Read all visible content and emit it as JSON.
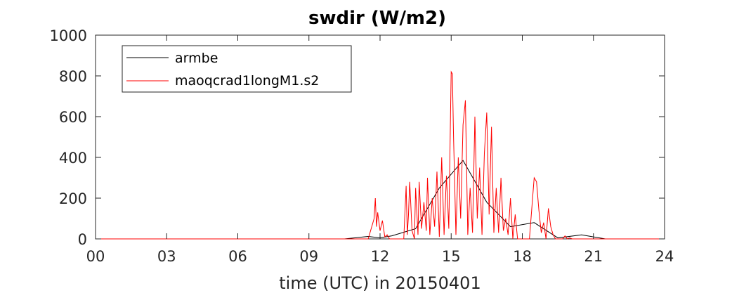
{
  "chart_data": {
    "type": "line",
    "title": "swdir  (W/m2)",
    "xlabel": "time (UTC) in 20150401",
    "ylabel": "",
    "xlim": [
      0,
      24
    ],
    "ylim": [
      0,
      1000
    ],
    "x_ticks": [
      0,
      3,
      6,
      9,
      12,
      15,
      18,
      21,
      24
    ],
    "x_tick_labels": [
      "00",
      "03",
      "06",
      "09",
      "12",
      "15",
      "18",
      "21",
      "24"
    ],
    "y_ticks": [
      0,
      200,
      400,
      600,
      800,
      1000
    ],
    "y_tick_labels": [
      "0",
      "200",
      "400",
      "600",
      "800",
      "1000"
    ],
    "legend_position": "top-left",
    "series": [
      {
        "name": "armbe",
        "color": "#000000",
        "x": [
          0,
          10.5,
          11.5,
          12.0,
          12.5,
          13.5,
          14.5,
          15.5,
          16.5,
          17.5,
          18.5,
          19.5,
          20.5,
          21.5,
          22.5,
          24
        ],
        "y": [
          0,
          0,
          12,
          5,
          15,
          50,
          250,
          385,
          180,
          60,
          80,
          5,
          20,
          0,
          0,
          0
        ]
      },
      {
        "name": "maoqcrad1longM1.s2",
        "color": "#ff0000",
        "x": [
          0,
          11.5,
          11.75,
          11.8,
          11.85,
          11.9,
          12.0,
          12.1,
          12.2,
          12.3,
          12.4,
          12.5,
          12.6,
          12.7,
          12.8,
          13.0,
          13.1,
          13.15,
          13.2,
          13.25,
          13.35,
          13.45,
          13.5,
          13.6,
          13.65,
          13.75,
          13.85,
          13.95,
          14.0,
          14.1,
          14.2,
          14.3,
          14.4,
          14.5,
          14.6,
          14.7,
          14.8,
          14.9,
          14.95,
          15.0,
          15.05,
          15.1,
          15.2,
          15.3,
          15.4,
          15.5,
          15.6,
          15.7,
          15.8,
          15.9,
          16.0,
          16.1,
          16.2,
          16.3,
          16.4,
          16.5,
          16.6,
          16.7,
          16.8,
          16.9,
          17.0,
          17.1,
          17.2,
          17.3,
          17.4,
          17.5,
          17.6,
          17.7,
          17.8,
          18.0,
          18.3,
          18.5,
          18.55,
          18.6,
          18.7,
          18.8,
          18.9,
          19.0,
          19.1,
          19.2,
          19.3,
          19.4,
          19.5,
          19.7,
          19.8,
          19.9,
          20.0,
          20.1,
          24
        ],
        "y": [
          0,
          0,
          100,
          200,
          60,
          130,
          40,
          90,
          10,
          20,
          0,
          0,
          0,
          0,
          0,
          0,
          260,
          20,
          120,
          280,
          40,
          0,
          250,
          20,
          280,
          50,
          180,
          40,
          300,
          20,
          200,
          60,
          330,
          10,
          400,
          20,
          310,
          50,
          440,
          820,
          810,
          500,
          20,
          400,
          100,
          560,
          680,
          20,
          250,
          30,
          600,
          100,
          350,
          20,
          420,
          620,
          120,
          550,
          30,
          250,
          30,
          300,
          40,
          100,
          20,
          200,
          0,
          120,
          0,
          0,
          0,
          300,
          290,
          280,
          140,
          30,
          80,
          0,
          150,
          60,
          20,
          0,
          0,
          0,
          15,
          0,
          5,
          0,
          0
        ]
      }
    ]
  }
}
